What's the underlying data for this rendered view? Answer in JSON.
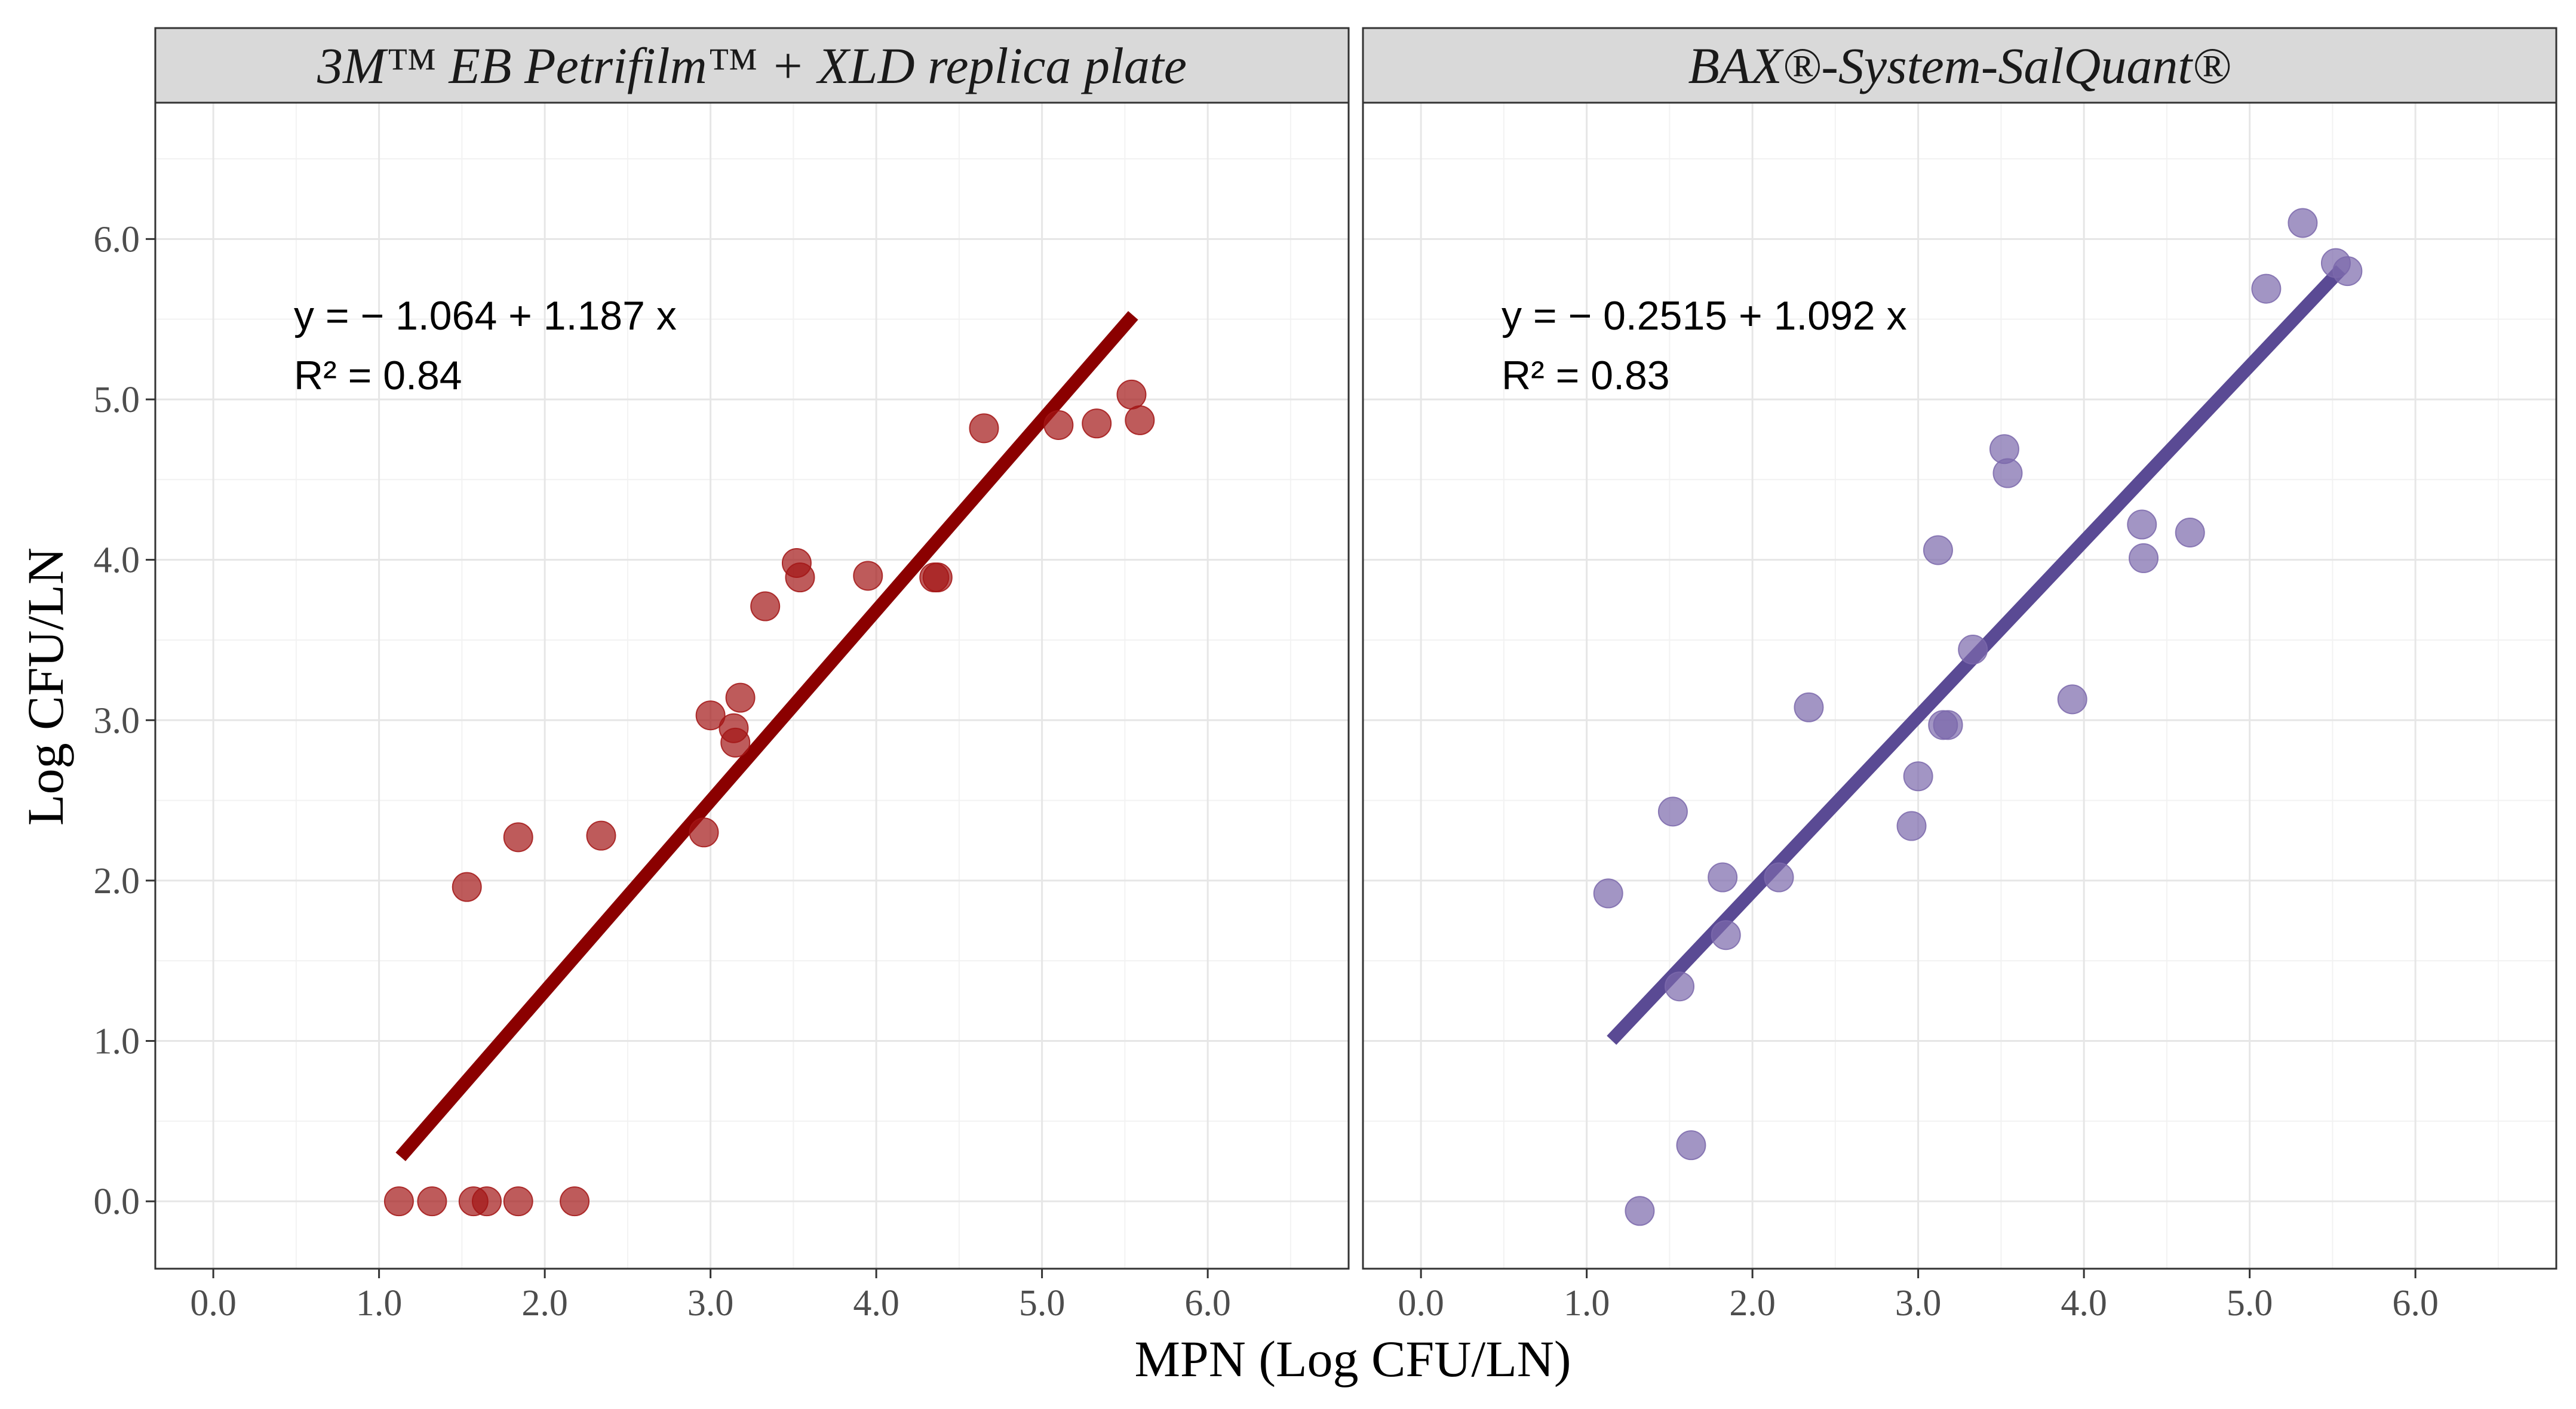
{
  "figure": {
    "x_axis_label": "MPN (Log CFU/LN)",
    "y_axis_label": "Log CFU/LN"
  },
  "chart_data": [
    {
      "type": "scatter",
      "title": "3M™ EB Petrifilm™ + XLD replica plate",
      "xlabel": "MPN (Log CFU/LN)",
      "ylabel": "Log CFU/LN",
      "xlim": [
        -0.35,
        6.85
      ],
      "ylim": [
        -0.42,
        6.85
      ],
      "x_ticks": [
        "0.0",
        "1.0",
        "2.0",
        "3.0",
        "4.0",
        "5.0",
        "6.0"
      ],
      "y_ticks": [
        "0.0",
        "1.0",
        "2.0",
        "3.0",
        "4.0",
        "5.0",
        "6.0"
      ],
      "grid": true,
      "point_color": "#a31515",
      "line_color": "#8b0000",
      "equation_text": "y = − 1.064 + 1.187 x",
      "r2_text": "R² = 0.84",
      "r2_value": "0.84",
      "fit": {
        "intercept": -1.064,
        "slope": 1.187,
        "x_range": [
          1.13,
          5.55
        ]
      },
      "points": [
        {
          "x": 1.12,
          "y": 0.0
        },
        {
          "x": 1.32,
          "y": 0.0
        },
        {
          "x": 1.57,
          "y": 0.0
        },
        {
          "x": 1.65,
          "y": 0.0
        },
        {
          "x": 1.84,
          "y": 0.0
        },
        {
          "x": 2.18,
          "y": 0.0
        },
        {
          "x": 1.53,
          "y": 1.96
        },
        {
          "x": 1.84,
          "y": 2.27
        },
        {
          "x": 2.34,
          "y": 2.28
        },
        {
          "x": 2.96,
          "y": 2.3
        },
        {
          "x": 3.0,
          "y": 3.03
        },
        {
          "x": 3.14,
          "y": 2.95
        },
        {
          "x": 3.15,
          "y": 2.86
        },
        {
          "x": 3.18,
          "y": 3.14
        },
        {
          "x": 3.33,
          "y": 3.71
        },
        {
          "x": 3.52,
          "y": 3.98
        },
        {
          "x": 3.54,
          "y": 3.89
        },
        {
          "x": 3.95,
          "y": 3.9
        },
        {
          "x": 4.35,
          "y": 3.89
        },
        {
          "x": 4.37,
          "y": 3.89
        },
        {
          "x": 4.65,
          "y": 4.82
        },
        {
          "x": 5.1,
          "y": 4.84
        },
        {
          "x": 5.33,
          "y": 4.85
        },
        {
          "x": 5.54,
          "y": 5.03
        },
        {
          "x": 5.59,
          "y": 4.87
        }
      ]
    },
    {
      "type": "scatter",
      "title": "BAX®-System-SalQuant®",
      "xlabel": "MPN (Log CFU/LN)",
      "ylabel": "Log CFU/LN",
      "xlim": [
        -0.35,
        6.85
      ],
      "ylim": [
        -0.42,
        6.85
      ],
      "x_ticks": [
        "0.0",
        "1.0",
        "2.0",
        "3.0",
        "4.0",
        "5.0",
        "6.0"
      ],
      "y_ticks": [
        "0.0",
        "1.0",
        "2.0",
        "3.0",
        "4.0",
        "5.0",
        "6.0"
      ],
      "grid": true,
      "point_color": "#7b68ab",
      "line_color": "#5a4a94",
      "equation_text": "y = − 0.2515 + 1.092 x",
      "r2_text": "R² = 0.83",
      "r2_value": "0.83",
      "fit": {
        "intercept": -0.2515,
        "slope": 1.092,
        "x_range": [
          1.15,
          5.55
        ]
      },
      "points": [
        {
          "x": 1.13,
          "y": 1.92
        },
        {
          "x": 1.32,
          "y": -0.06
        },
        {
          "x": 1.52,
          "y": 2.43
        },
        {
          "x": 1.56,
          "y": 1.34
        },
        {
          "x": 1.63,
          "y": 0.35
        },
        {
          "x": 1.82,
          "y": 2.02
        },
        {
          "x": 1.84,
          "y": 1.66
        },
        {
          "x": 2.16,
          "y": 2.02
        },
        {
          "x": 2.34,
          "y": 3.08
        },
        {
          "x": 2.96,
          "y": 2.34
        },
        {
          "x": 3.0,
          "y": 2.65
        },
        {
          "x": 3.12,
          "y": 4.06
        },
        {
          "x": 3.15,
          "y": 2.97
        },
        {
          "x": 3.18,
          "y": 2.97
        },
        {
          "x": 3.33,
          "y": 3.44
        },
        {
          "x": 3.52,
          "y": 4.69
        },
        {
          "x": 3.54,
          "y": 4.54
        },
        {
          "x": 3.93,
          "y": 3.13
        },
        {
          "x": 4.35,
          "y": 4.22
        },
        {
          "x": 4.36,
          "y": 4.01
        },
        {
          "x": 4.64,
          "y": 4.17
        },
        {
          "x": 5.1,
          "y": 5.69
        },
        {
          "x": 5.32,
          "y": 6.1
        },
        {
          "x": 5.52,
          "y": 5.85
        },
        {
          "x": 5.59,
          "y": 5.8
        }
      ]
    }
  ]
}
